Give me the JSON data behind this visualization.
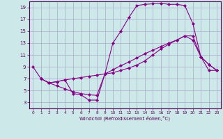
{
  "bg_color": "#cce8e8",
  "grid_color": "#aaaacc",
  "line_color": "#880088",
  "marker_color": "#880088",
  "xlabel": "Windchill (Refroidissement éolien,°C)",
  "xlim": [
    -0.5,
    23.5
  ],
  "ylim": [
    2,
    20
  ],
  "yticks": [
    3,
    5,
    7,
    9,
    11,
    13,
    15,
    17,
    19
  ],
  "xticks": [
    0,
    1,
    2,
    3,
    4,
    5,
    6,
    7,
    8,
    9,
    10,
    11,
    12,
    13,
    14,
    15,
    16,
    17,
    18,
    19,
    20,
    21,
    22,
    23
  ],
  "line1_x": [
    0,
    1,
    2,
    3,
    4,
    5,
    6,
    7,
    8,
    9,
    10,
    11,
    12,
    13,
    14,
    15,
    16,
    17,
    18,
    19,
    20,
    21,
    22,
    23
  ],
  "line1_y": [
    9.0,
    7.0,
    6.3,
    6.5,
    6.8,
    4.5,
    4.3,
    3.4,
    3.4,
    7.8,
    13.0,
    15.0,
    17.3,
    19.3,
    19.5,
    19.6,
    19.7,
    19.5,
    19.5,
    19.3,
    16.3,
    10.7,
    9.4,
    8.4
  ],
  "line2_x": [
    1,
    2,
    3,
    4,
    5,
    6,
    7,
    8,
    9,
    10,
    11,
    12,
    13,
    14,
    15,
    16,
    17,
    18,
    19,
    20,
    21,
    22,
    23
  ],
  "line2_y": [
    7.0,
    6.3,
    6.5,
    6.8,
    7.0,
    7.2,
    7.4,
    7.6,
    7.8,
    8.0,
    8.4,
    8.8,
    9.3,
    10.0,
    11.0,
    12.0,
    12.8,
    13.5,
    14.2,
    14.2,
    10.7,
    8.4,
    8.4
  ],
  "line3_x": [
    1,
    2,
    3,
    4,
    5,
    6,
    7,
    8,
    9,
    10,
    11,
    12,
    13,
    14,
    15,
    16,
    17,
    18,
    19,
    20,
    21,
    22,
    23
  ],
  "line3_y": [
    7.0,
    6.3,
    5.8,
    5.3,
    4.8,
    4.5,
    4.3,
    4.2,
    7.8,
    8.5,
    9.2,
    9.8,
    10.5,
    11.2,
    11.8,
    12.4,
    13.0,
    13.5,
    14.2,
    13.5,
    10.7,
    9.4,
    8.4
  ]
}
